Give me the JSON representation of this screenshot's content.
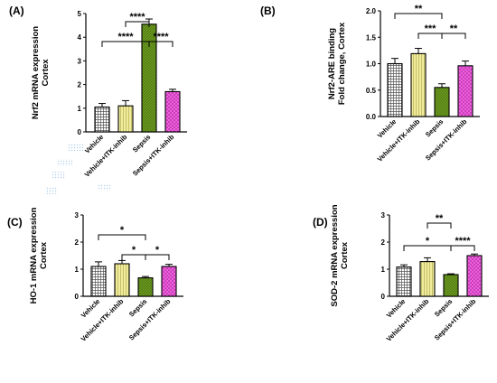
{
  "chart_data": [
    {
      "type": "bar",
      "panel_label": "(A)",
      "ylabel": "Nrf2 mRNA expression\nCortex",
      "ylim": [
        0,
        5
      ],
      "yticks": [
        "0",
        "1",
        "2",
        "3",
        "4",
        "5"
      ],
      "categories": [
        "Vehicle",
        "Vehicle+ITK-inhib",
        "Sepsis",
        "Sepsis+ITK-inhib"
      ],
      "values": [
        1.05,
        1.1,
        4.55,
        1.7
      ],
      "errors": [
        0.15,
        0.22,
        0.22,
        0.1
      ],
      "colors": [
        "#ffffff",
        "#f0ec9c",
        "#6b9a1f",
        "#f25ce0"
      ],
      "significance": [
        {
          "from": 1,
          "to": 2,
          "label": "****"
        },
        {
          "from": 0,
          "to": 2,
          "label": "****"
        },
        {
          "from": 2,
          "to": 3,
          "label": "****"
        }
      ]
    },
    {
      "type": "bar",
      "panel_label": "(B)",
      "ylabel": "Nrf2-ARE binding\nFold change, Cortex",
      "ylim": [
        0,
        2
      ],
      "yticks": [
        "0.0",
        "0.5",
        "1.0",
        "1.5",
        "2.0"
      ],
      "categories": [
        "Vehicle",
        "Vehicle+ITK-inhib",
        "Sepsis",
        "Sepsis+ITK-inhib"
      ],
      "values": [
        1.0,
        1.19,
        0.55,
        0.96
      ],
      "errors": [
        0.1,
        0.1,
        0.07,
        0.09
      ],
      "colors": [
        "#ffffff",
        "#f0ec9c",
        "#6b9a1f",
        "#f25ce0"
      ],
      "significance": [
        {
          "from": 0,
          "to": 2,
          "label": "**"
        },
        {
          "from": 1,
          "to": 2,
          "label": "***"
        },
        {
          "from": 2,
          "to": 3,
          "label": "**"
        }
      ]
    },
    {
      "type": "bar",
      "panel_label": "(C)",
      "ylabel": "HO-1 mRNA expression\nCortex",
      "ylim": [
        0,
        3
      ],
      "yticks": [
        "0",
        "1",
        "2",
        "3"
      ],
      "categories": [
        "Vehicle",
        "Vehicle+ITK-inhib",
        "Sepsis",
        "Sepsis+ITK-inhib"
      ],
      "values": [
        1.1,
        1.2,
        0.68,
        1.1
      ],
      "errors": [
        0.17,
        0.12,
        0.05,
        0.08
      ],
      "colors": [
        "#ffffff",
        "#f0ec9c",
        "#6b9a1f",
        "#f25ce0"
      ],
      "significance": [
        {
          "from": 0,
          "to": 2,
          "label": "*"
        },
        {
          "from": 1,
          "to": 2,
          "label": "*"
        },
        {
          "from": 2,
          "to": 3,
          "label": "*"
        }
      ]
    },
    {
      "type": "bar",
      "panel_label": "(D)",
      "ylabel": "SOD-2 mRNA expression\nCortex",
      "ylim": [
        0,
        3
      ],
      "yticks": [
        "0",
        "1",
        "2",
        "3"
      ],
      "categories": [
        "Vehicle",
        "Vehicle+ITK-inhib",
        "Sepsis",
        "Sepsis+ITK-inhib"
      ],
      "values": [
        1.08,
        1.28,
        0.8,
        1.5
      ],
      "errors": [
        0.08,
        0.14,
        0.03,
        0.06
      ],
      "colors": [
        "#ffffff",
        "#f0ec9c",
        "#6b9a1f",
        "#f25ce0"
      ],
      "significance": [
        {
          "from": 1,
          "to": 2,
          "label": "**"
        },
        {
          "from": 0,
          "to": 2,
          "label": "*"
        },
        {
          "from": 2,
          "to": 3,
          "label": "****"
        }
      ]
    }
  ]
}
